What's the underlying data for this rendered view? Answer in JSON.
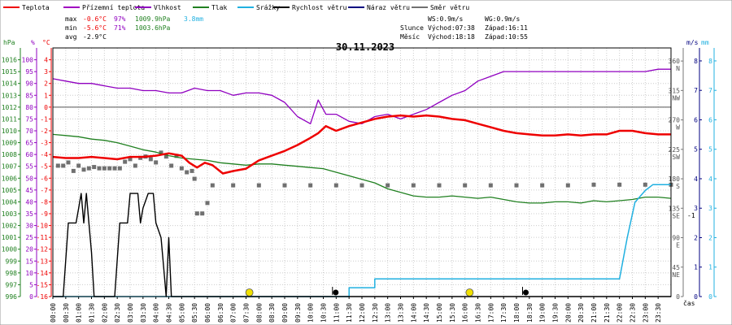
{
  "legend": [
    {
      "label": "Teplota",
      "color": "#ee0000"
    },
    {
      "label": "Přízemní teplota",
      "color": "#a000c0"
    },
    {
      "label": "Vlhkost",
      "color": "#9000c0"
    },
    {
      "label": "Tlak",
      "color": "#208020"
    },
    {
      "label": "Srážky",
      "color": "#20b0e0"
    },
    {
      "label": "Rychlost větru",
      "color": "#000000"
    },
    {
      "label": "Náraz větru",
      "color": "#000080"
    },
    {
      "label": "Směr větru",
      "color": "#707070"
    }
  ],
  "stats": {
    "max": {
      "label": "max",
      "temp": "-0.6°C",
      "hum": "97%",
      "press": "1009.9hPa",
      "rain": "3.8mm"
    },
    "min": {
      "label": "min",
      "temp": "-5.6°C",
      "hum": "71%",
      "press": "1003.6hPa"
    },
    "avg": {
      "label": "avg",
      "temp": "-2.9°C"
    }
  },
  "info": {
    "ws": "WS:0.9m/s",
    "wg": "WG:0.9m/s",
    "sun_label": "Slunce",
    "sun_rise": "Východ:07:38",
    "sun_set": "Západ:16:11",
    "moon_label": "Měsíc",
    "moon_rise": "Východ:18:18",
    "moon_set": "Západ:10:55"
  },
  "colors": {
    "temp": "#ee0000",
    "humidity": "#9000c0",
    "pressure": "#208020",
    "rain": "#20b0e0",
    "wind": "#000000",
    "direction": "#707070",
    "axis_hpa": "#208020",
    "axis_pct": "#9000c0",
    "axis_c": "#ee0000",
    "axis_ms": "#000080",
    "axis_mm": "#20b0e0",
    "grid": "#cccccc",
    "sun": "#f0e000"
  },
  "chart_data": {
    "type": "line",
    "title": "30.11.2023",
    "x_unit_label": "čas",
    "x_range": [
      0,
      24
    ],
    "x_ticks": [
      "00:00",
      "00:30",
      "01:00",
      "01:30",
      "02:00",
      "02:30",
      "03:00",
      "03:30",
      "04:00",
      "04:30",
      "05:00",
      "05:30",
      "06:00",
      "06:30",
      "07:00",
      "07:30",
      "08:00",
      "08:30",
      "09:00",
      "09:30",
      "10:00",
      "10:30",
      "11:00",
      "11:30",
      "12:00",
      "12:30",
      "13:00",
      "13:30",
      "14:00",
      "14:30",
      "15:00",
      "15:30",
      "16:00",
      "16:30",
      "17:00",
      "17:30",
      "18:00",
      "18:30",
      "19:00",
      "19:30",
      "20:00",
      "20:30",
      "21:00",
      "21:30",
      "22:00",
      "22:30",
      "23:00",
      "23:30"
    ],
    "axes": {
      "pressure_hpa": {
        "label": "hPa",
        "range": [
          996,
          1017
        ],
        "ticks": [
          996,
          997,
          998,
          999,
          1000,
          1001,
          1002,
          1003,
          1004,
          1005,
          1006,
          1007,
          1008,
          1009,
          1010,
          1011,
          1012,
          1013,
          1014,
          1015,
          1016
        ]
      },
      "humidity_pct": {
        "label": "%",
        "range": [
          0,
          105
        ],
        "ticks": [
          0,
          5,
          10,
          15,
          20,
          25,
          30,
          35,
          40,
          45,
          50,
          55,
          60,
          65,
          70,
          75,
          80,
          85,
          90,
          95,
          100
        ]
      },
      "temperature_c": {
        "label": "°C",
        "range": [
          -16,
          5
        ],
        "ticks": [
          -16,
          -15,
          -14,
          -13,
          -12,
          -11,
          -10,
          -9,
          -8,
          -7,
          -6,
          -5,
          -4,
          -3,
          -2,
          -1,
          0,
          1,
          2,
          3,
          4
        ]
      },
      "direction_deg": {
        "range": [
          0,
          380
        ],
        "ticks": [
          {
            "v": 360,
            "l": "360",
            "c": "N"
          },
          {
            "v": 315,
            "l": "315",
            "c": "NW"
          },
          {
            "v": 270,
            "l": "270",
            "c": "W"
          },
          {
            "v": 225,
            "l": "225",
            "c": "SW"
          },
          {
            "v": 180,
            "l": "180",
            "c": "S"
          },
          {
            "v": 135,
            "l": "135",
            "c": "SE"
          },
          {
            "v": 90,
            "l": "90",
            "c": "E"
          },
          {
            "v": 45,
            "l": "45",
            "c": "NE"
          },
          {
            "v": 0,
            "l": "0",
            "c": ""
          }
        ]
      },
      "wind_ms": {
        "label": "m/s",
        "range": [
          0,
          8.44
        ],
        "ticks": [
          0,
          1,
          2,
          3,
          4,
          5,
          6,
          7,
          8
        ],
        "extra_tick_label": "-1"
      },
      "rain_mm": {
        "label": "mm",
        "range": [
          0,
          8.44
        ],
        "ticks": [
          0,
          1,
          2,
          3,
          4,
          5,
          6,
          7,
          8
        ]
      }
    },
    "series": [
      {
        "name": "Teplota",
        "key": "temp",
        "axis": "temperature_c",
        "points": [
          [
            0,
            -4.2
          ],
          [
            0.5,
            -4.3
          ],
          [
            1,
            -4.3
          ],
          [
            1.5,
            -4.2
          ],
          [
            2,
            -4.3
          ],
          [
            2.5,
            -4.4
          ],
          [
            3,
            -4.2
          ],
          [
            3.5,
            -4.2
          ],
          [
            4,
            -4.1
          ],
          [
            4.5,
            -3.9
          ],
          [
            5,
            -4.1
          ],
          [
            5.3,
            -4.7
          ],
          [
            5.6,
            -5.1
          ],
          [
            5.9,
            -4.7
          ],
          [
            6.2,
            -4.9
          ],
          [
            6.6,
            -5.6
          ],
          [
            7,
            -5.4
          ],
          [
            7.5,
            -5.2
          ],
          [
            8,
            -4.5
          ],
          [
            8.5,
            -4.1
          ],
          [
            9,
            -3.7
          ],
          [
            9.5,
            -3.2
          ],
          [
            10,
            -2.6
          ],
          [
            10.3,
            -2.2
          ],
          [
            10.6,
            -1.6
          ],
          [
            11,
            -2.0
          ],
          [
            11.5,
            -1.6
          ],
          [
            12,
            -1.3
          ],
          [
            12.5,
            -1.0
          ],
          [
            13,
            -0.8
          ],
          [
            13.5,
            -0.7
          ],
          [
            14,
            -0.8
          ],
          [
            14.5,
            -0.7
          ],
          [
            15,
            -0.8
          ],
          [
            15.5,
            -1.0
          ],
          [
            16,
            -1.1
          ],
          [
            16.5,
            -1.4
          ],
          [
            17,
            -1.7
          ],
          [
            17.5,
            -2.0
          ],
          [
            18,
            -2.2
          ],
          [
            18.5,
            -2.3
          ],
          [
            19,
            -2.4
          ],
          [
            19.5,
            -2.4
          ],
          [
            20,
            -2.3
          ],
          [
            20.5,
            -2.4
          ],
          [
            21,
            -2.3
          ],
          [
            21.5,
            -2.3
          ],
          [
            22,
            -2.0
          ],
          [
            22.5,
            -2.0
          ],
          [
            23,
            -2.2
          ],
          [
            23.5,
            -2.3
          ],
          [
            24,
            -2.3
          ]
        ]
      },
      {
        "name": "Vlhkost",
        "key": "humidity",
        "axis": "humidity_pct",
        "points": [
          [
            0,
            92
          ],
          [
            0.5,
            91
          ],
          [
            1,
            90
          ],
          [
            1.5,
            90
          ],
          [
            2,
            89
          ],
          [
            2.5,
            88
          ],
          [
            3,
            88
          ],
          [
            3.5,
            87
          ],
          [
            4,
            87
          ],
          [
            4.5,
            86
          ],
          [
            5,
            86
          ],
          [
            5.5,
            88
          ],
          [
            6,
            87
          ],
          [
            6.5,
            87
          ],
          [
            7,
            85
          ],
          [
            7.5,
            86
          ],
          [
            8,
            86
          ],
          [
            8.5,
            85
          ],
          [
            9,
            82
          ],
          [
            9.5,
            76
          ],
          [
            10,
            73
          ],
          [
            10.3,
            83
          ],
          [
            10.6,
            77
          ],
          [
            11,
            77
          ],
          [
            11.5,
            74
          ],
          [
            12,
            73
          ],
          [
            12.5,
            76
          ],
          [
            13,
            77
          ],
          [
            13.5,
            75
          ],
          [
            14,
            77
          ],
          [
            14.5,
            79
          ],
          [
            15,
            82
          ],
          [
            15.5,
            85
          ],
          [
            16,
            87
          ],
          [
            16.5,
            91
          ],
          [
            17,
            93
          ],
          [
            17.5,
            95
          ],
          [
            18,
            95
          ],
          [
            18.5,
            95
          ],
          [
            19,
            95
          ],
          [
            19.5,
            95
          ],
          [
            20,
            95
          ],
          [
            20.5,
            95
          ],
          [
            21,
            95
          ],
          [
            21.5,
            95
          ],
          [
            22,
            95
          ],
          [
            22.5,
            95
          ],
          [
            23,
            95
          ],
          [
            23.5,
            96
          ],
          [
            24,
            96
          ]
        ]
      },
      {
        "name": "Tlak",
        "key": "pressure",
        "axis": "pressure_hpa",
        "points": [
          [
            0,
            1009.7
          ],
          [
            0.5,
            1009.6
          ],
          [
            1,
            1009.5
          ],
          [
            1.5,
            1009.3
          ],
          [
            2,
            1009.2
          ],
          [
            2.5,
            1009.0
          ],
          [
            3,
            1008.7
          ],
          [
            3.5,
            1008.4
          ],
          [
            4,
            1008.2
          ],
          [
            4.5,
            1007.9
          ],
          [
            5,
            1007.7
          ],
          [
            5.5,
            1007.6
          ],
          [
            6,
            1007.5
          ],
          [
            6.5,
            1007.3
          ],
          [
            7,
            1007.2
          ],
          [
            7.5,
            1007.1
          ],
          [
            8,
            1007.2
          ],
          [
            8.5,
            1007.2
          ],
          [
            9,
            1007.1
          ],
          [
            9.5,
            1007.0
          ],
          [
            10,
            1006.9
          ],
          [
            10.5,
            1006.8
          ],
          [
            11,
            1006.5
          ],
          [
            11.5,
            1006.2
          ],
          [
            12,
            1005.9
          ],
          [
            12.5,
            1005.6
          ],
          [
            13,
            1005.1
          ],
          [
            13.5,
            1004.8
          ],
          [
            14,
            1004.5
          ],
          [
            14.5,
            1004.4
          ],
          [
            15,
            1004.4
          ],
          [
            15.5,
            1004.5
          ],
          [
            16,
            1004.4
          ],
          [
            16.5,
            1004.3
          ],
          [
            17,
            1004.4
          ],
          [
            17.5,
            1004.2
          ],
          [
            18,
            1004.0
          ],
          [
            18.5,
            1003.9
          ],
          [
            19,
            1003.9
          ],
          [
            19.5,
            1004.0
          ],
          [
            20,
            1004.0
          ],
          [
            20.5,
            1003.9
          ],
          [
            21,
            1004.1
          ],
          [
            21.5,
            1004.0
          ],
          [
            22,
            1004.1
          ],
          [
            22.5,
            1004.2
          ],
          [
            23,
            1004.4
          ],
          [
            23.5,
            1004.4
          ],
          [
            24,
            1004.3
          ]
        ]
      },
      {
        "name": "Srážky",
        "key": "rain",
        "axis": "rain_mm",
        "points": [
          [
            0,
            0
          ],
          [
            11.5,
            0
          ],
          [
            11.5,
            0.3
          ],
          [
            12.5,
            0.3
          ],
          [
            12.5,
            0.6
          ],
          [
            22,
            0.6
          ],
          [
            22.3,
            2.0
          ],
          [
            22.6,
            3.2
          ],
          [
            23,
            3.6
          ],
          [
            23.3,
            3.8
          ],
          [
            24,
            3.8
          ]
        ]
      },
      {
        "name": "Rychlost větru",
        "key": "wind",
        "axis": "wind_ms",
        "points": [
          [
            0,
            0
          ],
          [
            0.4,
            0
          ],
          [
            0.6,
            2.5
          ],
          [
            0.9,
            2.5
          ],
          [
            1.0,
            3.0
          ],
          [
            1.1,
            3.5
          ],
          [
            1.2,
            2.5
          ],
          [
            1.3,
            3.5
          ],
          [
            1.4,
            2.5
          ],
          [
            1.5,
            1.5
          ],
          [
            1.6,
            0
          ],
          [
            2.4,
            0
          ],
          [
            2.6,
            2.5
          ],
          [
            2.9,
            2.5
          ],
          [
            3.0,
            3.5
          ],
          [
            3.3,
            3.5
          ],
          [
            3.4,
            2.5
          ],
          [
            3.5,
            3.0
          ],
          [
            3.7,
            3.5
          ],
          [
            3.9,
            3.5
          ],
          [
            4.0,
            2.5
          ],
          [
            4.2,
            2.0
          ],
          [
            4.3,
            1.0
          ],
          [
            4.4,
            0
          ],
          [
            4.5,
            2.0
          ],
          [
            4.6,
            0
          ],
          [
            24,
            0
          ]
        ]
      }
    ],
    "direction_points": [
      [
        0.2,
        200
      ],
      [
        0.4,
        200
      ],
      [
        0.6,
        205
      ],
      [
        0.8,
        192
      ],
      [
        1.0,
        200
      ],
      [
        1.2,
        194
      ],
      [
        1.4,
        196
      ],
      [
        1.6,
        198
      ],
      [
        1.8,
        196
      ],
      [
        2.0,
        196
      ],
      [
        2.2,
        196
      ],
      [
        2.4,
        196
      ],
      [
        2.6,
        196
      ],
      [
        2.8,
        206
      ],
      [
        3.0,
        210
      ],
      [
        3.2,
        200
      ],
      [
        3.4,
        212
      ],
      [
        3.6,
        214
      ],
      [
        3.8,
        210
      ],
      [
        4.0,
        205
      ],
      [
        4.2,
        220
      ],
      [
        4.4,
        214
      ],
      [
        4.6,
        200
      ],
      [
        4.8,
        215
      ],
      [
        5.0,
        196
      ],
      [
        5.2,
        190
      ],
      [
        5.4,
        192
      ],
      [
        5.5,
        180
      ],
      [
        5.6,
        127
      ],
      [
        5.8,
        127
      ],
      [
        6.0,
        143
      ],
      [
        6.2,
        170
      ],
      [
        7,
        170
      ],
      [
        8,
        170
      ],
      [
        9,
        170
      ],
      [
        10,
        170
      ],
      [
        11,
        170
      ],
      [
        12,
        170
      ],
      [
        13,
        170
      ],
      [
        14,
        170
      ],
      [
        15,
        170
      ],
      [
        16,
        170
      ],
      [
        17,
        170
      ],
      [
        18,
        170
      ],
      [
        19,
        170
      ],
      [
        20,
        170
      ],
      [
        21,
        171
      ],
      [
        22,
        171
      ],
      [
        23,
        171
      ],
      [
        24,
        171
      ]
    ],
    "markers": [
      {
        "type": "sun",
        "t": 7.63
      },
      {
        "type": "sun",
        "t": 16.18
      },
      {
        "type": "moon",
        "t": 10.92
      },
      {
        "type": "moon",
        "t": 18.3
      }
    ]
  }
}
